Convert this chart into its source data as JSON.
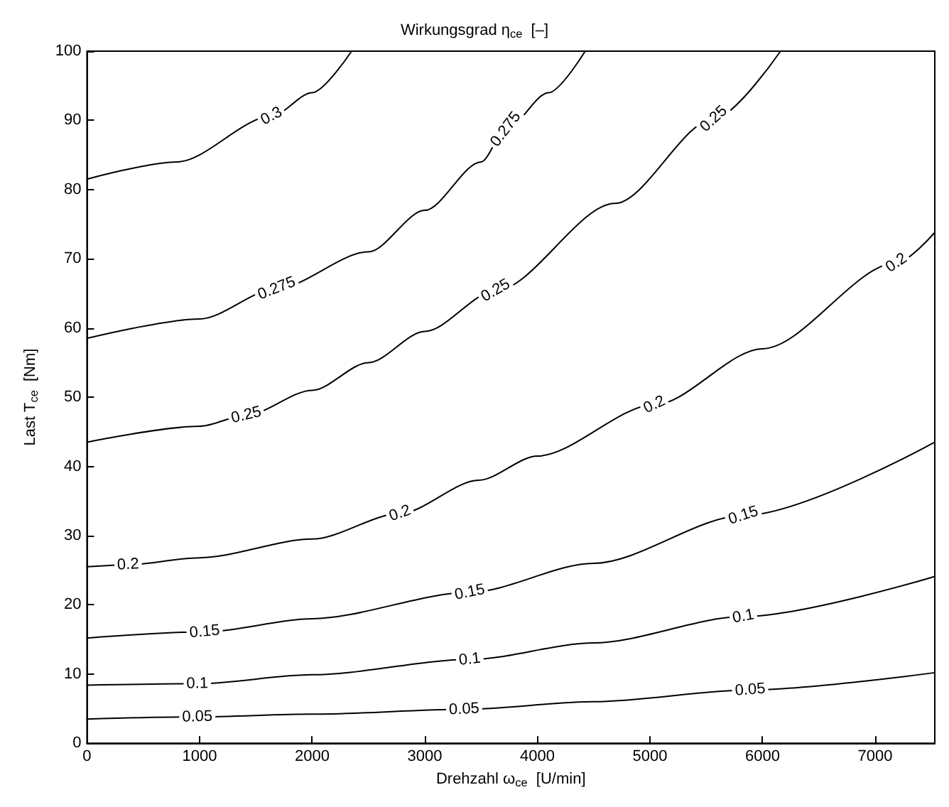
{
  "chart_data": {
    "type": "line",
    "title": "Wirkungsgrad η$_{ce}$  [–]",
    "xlabel": "Drehzahl ω$_{ce}$  [U/min]",
    "ylabel": "Last T$_{ce}$  [Nm]",
    "xlim": [
      0,
      7530
    ],
    "xticks": [
      0,
      1000,
      2000,
      3000,
      4000,
      5000,
      6000,
      7000
    ],
    "ylim": [
      0,
      100
    ],
    "yticks": [
      0,
      10,
      20,
      30,
      40,
      50,
      60,
      70,
      80,
      90,
      100
    ],
    "grid": false,
    "legend": false,
    "marker": "none",
    "line_style": "solid",
    "series": [
      {
        "color": "#000000",
        "x": [
          0,
          800,
          1640,
          2000,
          2350
        ],
        "values": [
          81.5,
          84,
          90.6,
          94,
          100
        ]
      },
      {
        "color": "#000000",
        "x": [
          0,
          1000,
          1685,
          2500,
          3000,
          3500,
          3720,
          4100,
          4425
        ],
        "values": [
          58.5,
          61.3,
          65.7,
          71,
          77,
          84,
          88.7,
          94,
          100
        ]
      },
      {
        "color": "#000000",
        "x": [
          0,
          1000,
          1415,
          2000,
          2500,
          3000,
          3630,
          4690,
          5567,
          6160
        ],
        "values": [
          43.5,
          45.8,
          47.4,
          51,
          55,
          59.5,
          65.4,
          78,
          90.2,
          100
        ]
      },
      {
        "color": "#000000",
        "x": [
          0,
          365,
          1000,
          2000,
          2780,
          3480,
          4000,
          5040,
          6000,
          7190,
          7530
        ],
        "values": [
          25.5,
          25.8,
          26.8,
          29.5,
          33.2,
          38,
          41.5,
          48.9,
          57,
          69.4,
          73.8
        ]
      },
      {
        "color": "#000000",
        "x": [
          0,
          1045,
          2000,
          3400,
          4500,
          5830,
          7530
        ],
        "values": [
          15.2,
          16.1,
          18,
          21.8,
          26,
          32.9,
          43.5
        ]
      },
      {
        "color": "#000000",
        "x": [
          0,
          980,
          2000,
          3400,
          4500,
          5830,
          7530
        ],
        "values": [
          8.4,
          8.6,
          9.9,
          12.1,
          14.5,
          18.3,
          24.1
        ]
      },
      {
        "color": "#000000",
        "x": [
          0,
          980,
          2000,
          3350,
          4500,
          5890,
          7530
        ],
        "values": [
          3.5,
          3.8,
          4.2,
          4.9,
          6,
          7.7,
          10.2
        ]
      }
    ],
    "annotations": [
      {
        "text": "0.3",
        "x": 1640,
        "y": 90.6
      },
      {
        "text": "0.275",
        "x": 1685,
        "y": 65.7
      },
      {
        "text": "0.275",
        "x": 3720,
        "y": 88.7
      },
      {
        "text": "0.25",
        "x": 1415,
        "y": 47.4
      },
      {
        "text": "0.25",
        "x": 3630,
        "y": 65.4
      },
      {
        "text": "0.25",
        "x": 5567,
        "y": 90.2
      },
      {
        "text": "0.2",
        "x": 365,
        "y": 25.8
      },
      {
        "text": "0.2",
        "x": 2780,
        "y": 33.2
      },
      {
        "text": "0.2",
        "x": 5040,
        "y": 48.9
      },
      {
        "text": "0.2",
        "x": 7190,
        "y": 69.4
      },
      {
        "text": "0.15",
        "x": 1045,
        "y": 16.1
      },
      {
        "text": "0.15",
        "x": 3400,
        "y": 21.8
      },
      {
        "text": "0.15",
        "x": 5830,
        "y": 32.9
      },
      {
        "text": "0.1",
        "x": 980,
        "y": 8.6
      },
      {
        "text": "0.1",
        "x": 3400,
        "y": 12.1
      },
      {
        "text": "0.1",
        "x": 5830,
        "y": 18.3
      },
      {
        "text": "0.05",
        "x": 980,
        "y": 3.8
      },
      {
        "text": "0.05",
        "x": 3350,
        "y": 4.9
      },
      {
        "text": "0.05",
        "x": 5890,
        "y": 7.7
      }
    ]
  }
}
